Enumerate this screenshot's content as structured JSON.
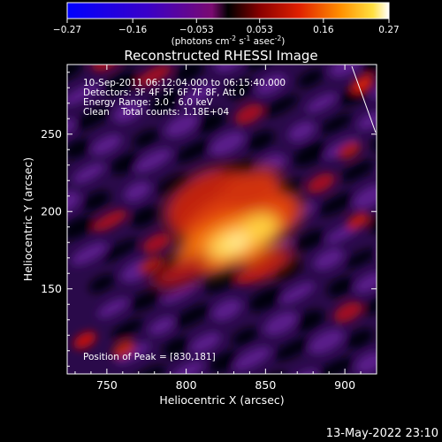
{
  "colorbar": {
    "ticks": [
      "-0.27",
      "-0.16",
      "-0.053",
      "0.053",
      "0.16",
      "0.27"
    ],
    "units_prefix": "(photons cm",
    "units_exp1": "-2",
    "units_mid": " s",
    "units_exp2": "-1",
    "units_mid2": " asec",
    "units_exp3": "-2",
    "units_suffix": ")",
    "range": [
      -0.27,
      0.27
    ]
  },
  "chart_data": {
    "type": "heatmap",
    "title": "Reconstructed RHESSI Image",
    "xlabel": "Heliocentric X (arcsec)",
    "ylabel": "Heliocentric Y (arcsec)",
    "xlim": [
      725,
      920
    ],
    "ylim": [
      95,
      295
    ],
    "xticks": [
      750,
      800,
      850,
      900
    ],
    "yticks": [
      150,
      200,
      250
    ],
    "peak": {
      "x": 830,
      "y": 181
    },
    "annotations": [
      "10-Sep-2011 06:12:04.000 to 06:15:40.000",
      "Detectors: 3F 4F 5F 6F 7F 8F, Att 0",
      "Energy Range: 3.0 - 6.0 keV",
      "Clean    Total counts: 1.18E+04"
    ],
    "peak_label": "Position of Peak = [830,181]",
    "colormap": "rhessi-heat",
    "grid": false
  },
  "footer": {
    "timestamp": "13-May-2022 23:10"
  }
}
